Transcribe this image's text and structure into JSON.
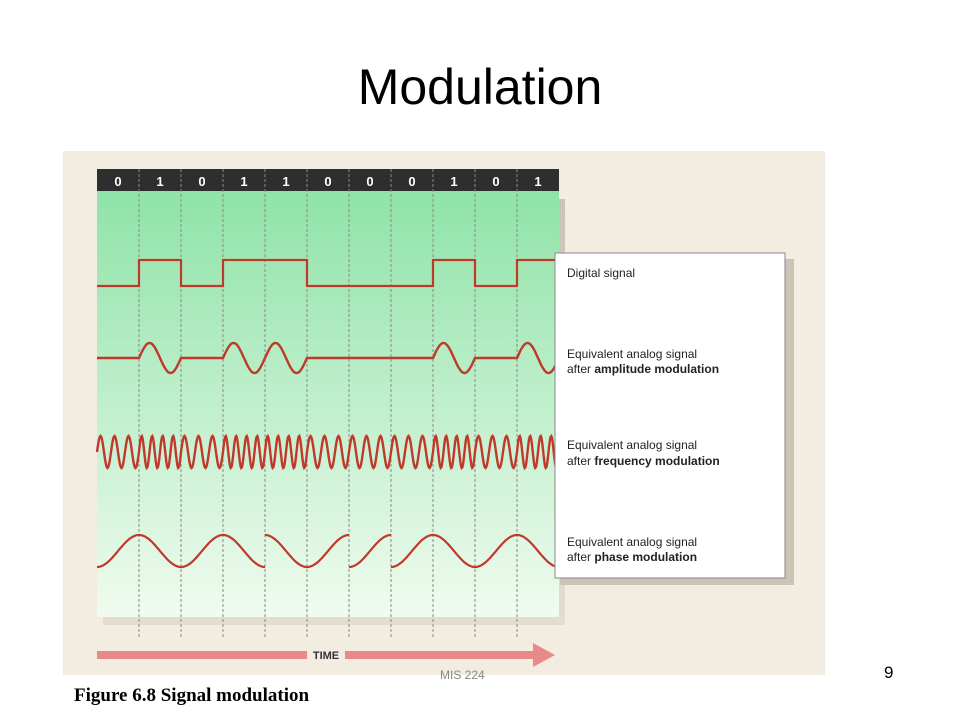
{
  "slide": {
    "title": "Modulation",
    "caption": "Figure 6.8 Signal modulation",
    "footer": "MIS 224",
    "page_number": "9"
  },
  "figure": {
    "bits": [
      "0",
      "1",
      "0",
      "1",
      "1",
      "0",
      "0",
      "0",
      "1",
      "0",
      "1"
    ],
    "legend": {
      "digital": "Digital signal",
      "am_line1": "Equivalent analog signal",
      "am_line2_prefix": "after ",
      "am_line2_bold": "amplitude modulation",
      "fm_line1": "Equivalent analog signal",
      "fm_line2_prefix": "after ",
      "fm_line2_bold": "frequency modulation",
      "pm_line1": "Equivalent analog signal",
      "pm_line2_prefix": "after ",
      "pm_line2_bold": "phase modulation"
    },
    "time_label": "TIME",
    "colors": {
      "background": "#f2ede0",
      "panel_top": "#8fe3a8",
      "panel_bottom": "#f0fbef",
      "signal": "#c0392b",
      "time_arrow": "#e88a8a",
      "bits": "#ffffff"
    }
  }
}
